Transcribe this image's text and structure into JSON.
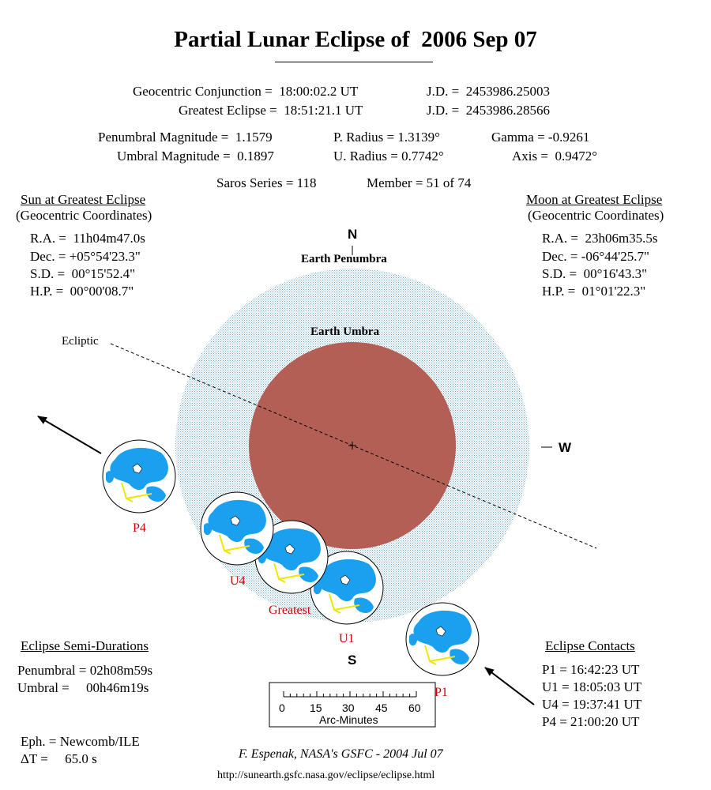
{
  "title": "Partial Lunar Eclipse of  2006 Sep 07",
  "conjunction": {
    "label": "Geocentric Conjunction =  18:00:02.2 UT",
    "jd": "J.D. =  2453986.25003"
  },
  "greatest": {
    "label": "Greatest Eclipse =  18:51:21.1 UT",
    "jd": "J.D. =  2453986.28566"
  },
  "params": {
    "penumbral_mag": "Penumbral Magnitude =  1.1579",
    "umbral_mag": "Umbral Magnitude =  0.1897",
    "p_radius": "P. Radius = 1.3139°",
    "u_radius": "U. Radius = 0.7742°",
    "gamma": "Gamma = -0.9261",
    "axis": "Axis =  0.9472°"
  },
  "saros": {
    "series": "Saros Series = 118",
    "member": "Member = 51 of 74"
  },
  "sun": {
    "heading": "Sun at Greatest Eclipse",
    "sub": "(Geocentric Coordinates)",
    "ra": "R.A. =  11h04m47.0s",
    "dec": "Dec. = +05°54'23.3\"",
    "sd": "S.D. =  00°15'52.4\"",
    "hp": "H.P. =  00°00'08.7\""
  },
  "moon": {
    "heading": "Moon at Greatest Eclipse",
    "sub": "(Geocentric Coordinates)",
    "ra": "R.A. =  23h06m35.5s",
    "dec": "Dec. = -06°44'25.7\"",
    "sd": "S.D. =  00°16'43.3\"",
    "hp": "H.P. =  01°01'22.3\""
  },
  "diagram": {
    "north": "N",
    "south": "S",
    "west": "W",
    "penumbra_label": "Earth Penumbra",
    "umbra_label": "Earth Umbra",
    "ecliptic_label": "Ecliptic",
    "penumbra_color": "#a8cfe0",
    "umbra_color": "#b35f55",
    "moon_sea_color": "#1aa0ee",
    "moon_positions": [
      {
        "label": "P1",
        "label_color": "#cc0000"
      },
      {
        "label": "U1",
        "label_color": "#cc0000"
      },
      {
        "label": "Greatest",
        "label_color": "#cc0000"
      },
      {
        "label": "U4",
        "label_color": "#cc0000"
      },
      {
        "label": "P4",
        "label_color": "#cc0000"
      }
    ]
  },
  "semi_durations": {
    "heading": "Eclipse Semi-Durations",
    "penumbral": "Penumbral = 02h08m59s",
    "umbral": "Umbral =     00h46m19s"
  },
  "contacts": {
    "heading": "Eclipse Contacts",
    "p1": "P1 = 16:42:23 UT",
    "u1": "U1 = 18:05:03 UT",
    "u4": "U4 = 19:37:41 UT",
    "p4": "P4 = 21:00:20 UT"
  },
  "scale": {
    "ticks": [
      "0",
      "15",
      "30",
      "45",
      "60"
    ],
    "label": "Arc-Minutes"
  },
  "ephemeris": {
    "eph": "Eph. = Newcomb/ILE",
    "delta_t": "ΔT =     65.0 s"
  },
  "credit": "F. Espenak, NASA's GSFC - 2004 Jul 07",
  "url": "http://sunearth.gsfc.nasa.gov/eclipse/eclipse.html"
}
